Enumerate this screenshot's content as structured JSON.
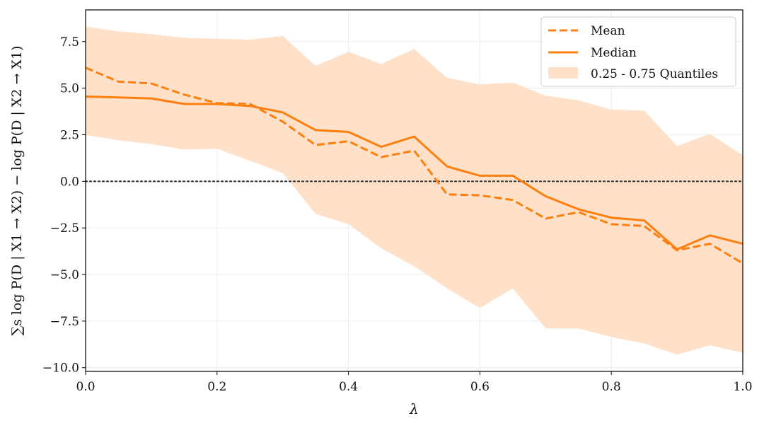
{
  "chart_data": {
    "type": "line",
    "title": "",
    "xlabel": "λ",
    "ylabel": "∑s log P(D | X1 → X2) − log P(D | X2 → X1)",
    "xlim": [
      0.0,
      1.0
    ],
    "ylim": [
      -10.2,
      9.2
    ],
    "grid": true,
    "legend_position": "top-right",
    "x_ticks": [
      0.0,
      0.2,
      0.4,
      0.6,
      0.8,
      1.0
    ],
    "x_tick_labels": [
      "0.0",
      "0.2",
      "0.4",
      "0.6",
      "0.8",
      "1.0"
    ],
    "y_ticks": [
      7.5,
      5.0,
      2.5,
      0.0,
      -2.5,
      -5.0,
      -7.5,
      -10.0
    ],
    "y_tick_labels": [
      "7.5",
      "5.0",
      "2.5",
      "0.0",
      "−2.5",
      "−5.0",
      "−7.5",
      "−10.0"
    ],
    "reference_line": {
      "y": 0.0,
      "style": "dotted"
    },
    "x": [
      0.0,
      0.05,
      0.1,
      0.15,
      0.2,
      0.25,
      0.3,
      0.35,
      0.4,
      0.45,
      0.5,
      0.55,
      0.6,
      0.65,
      0.7,
      0.75,
      0.8,
      0.85,
      0.9,
      0.95,
      1.0
    ],
    "series": [
      {
        "name": "Mean",
        "style": "dashed",
        "color": "#ff7f0e",
        "values": [
          6.1,
          5.35,
          5.25,
          4.65,
          4.2,
          4.15,
          3.2,
          1.95,
          2.15,
          1.3,
          1.65,
          -0.7,
          -0.75,
          -1.0,
          -2.0,
          -1.65,
          -2.3,
          -2.4,
          -3.7,
          -3.35,
          -4.4
        ]
      },
      {
        "name": "Median",
        "style": "solid",
        "color": "#ff7f0e",
        "values": [
          4.55,
          4.5,
          4.45,
          4.15,
          4.15,
          4.05,
          3.7,
          2.75,
          2.65,
          1.85,
          2.4,
          0.8,
          0.3,
          0.3,
          -0.8,
          -1.5,
          -1.95,
          -2.1,
          -3.65,
          -2.9,
          -3.35
        ]
      }
    ],
    "band": {
      "name": "0.25 - 0.75 Quantiles",
      "color": "#ffe1c9",
      "upper": [
        8.3,
        8.05,
        7.9,
        7.7,
        7.65,
        7.6,
        7.8,
        6.2,
        6.95,
        6.3,
        7.1,
        5.55,
        5.2,
        5.3,
        4.6,
        4.35,
        3.85,
        3.8,
        1.9,
        2.55,
        1.4
      ],
      "lower": [
        2.5,
        2.2,
        2.0,
        1.7,
        1.75,
        1.1,
        0.45,
        -1.75,
        -2.3,
        -3.6,
        -4.55,
        -5.75,
        -6.8,
        -5.75,
        -7.9,
        -7.9,
        -8.35,
        -8.7,
        -9.3,
        -8.8,
        -9.2
      ]
    }
  }
}
